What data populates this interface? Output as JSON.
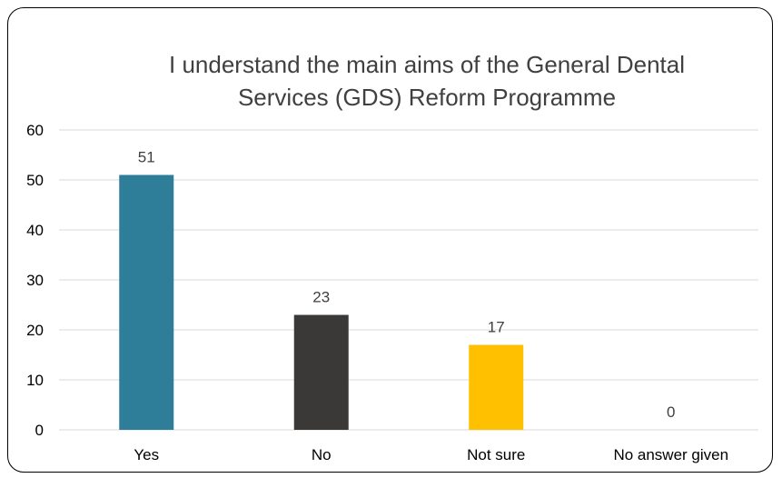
{
  "chart_data": {
    "type": "bar",
    "title_lines": [
      "I understand the main aims of the General Dental",
      "Services (GDS) Reform Programme"
    ],
    "categories": [
      "Yes",
      "No",
      "Not sure",
      "No answer given"
    ],
    "values": [
      51,
      23,
      17,
      0
    ],
    "value_labels": [
      "51",
      "23",
      "17",
      "0"
    ],
    "colors": [
      "#2e7d99",
      "#3a3938",
      "#ffc000",
      "#a5a5a5"
    ],
    "ylim": [
      0,
      60
    ],
    "yticks": [
      0,
      10,
      20,
      30,
      40,
      50,
      60
    ],
    "ytick_labels": [
      "0",
      "10",
      "20",
      "30",
      "40",
      "50",
      "60"
    ],
    "grid": true,
    "legend": "none"
  }
}
